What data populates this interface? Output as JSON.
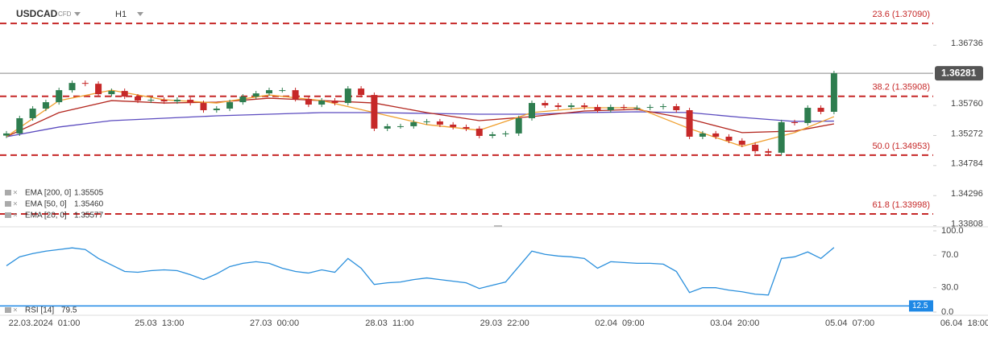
{
  "header": {
    "symbol": "USDCAD",
    "kind": "CFD",
    "timeframe": "H1"
  },
  "chart_data": [
    {
      "type": "candlestick",
      "open": [
        1.3527,
        1.35305,
        1.35552,
        1.35708,
        1.35812,
        1.36007,
        1.36124,
        1.36111,
        1.35942,
        1.35994,
        1.35903,
        1.35838,
        1.35851,
        1.35825,
        1.35851,
        1.35799,
        1.35682,
        1.35708,
        1.35812,
        1.35903,
        1.35955,
        1.36007,
        1.36007,
        1.35864,
        1.35773,
        1.35838,
        1.35799,
        1.36033,
        1.35929,
        1.35383,
        1.35422,
        1.35422,
        1.35487,
        1.355,
        1.35448,
        1.35409,
        1.35383,
        1.35265,
        1.35291,
        1.35305,
        1.35552,
        1.35799,
        1.3576,
        1.35734,
        1.3576,
        1.35734,
        1.35682,
        1.35734,
        1.35721,
        1.35721,
        1.35734,
        1.35747,
        1.35682,
        1.35252,
        1.35305,
        1.35252,
        1.35187,
        1.35122,
        1.35018,
        1.34992,
        1.35487,
        1.35474,
        1.35721,
        1.35656
      ],
      "high": [
        1.35345,
        1.35592,
        1.35748,
        1.35852,
        1.36047,
        1.36164,
        1.36164,
        1.36151,
        1.36034,
        1.36034,
        1.35943,
        1.35891,
        1.35891,
        1.35891,
        1.35891,
        1.35839,
        1.35748,
        1.35852,
        1.35943,
        1.35995,
        1.36047,
        1.36047,
        1.36047,
        1.35904,
        1.35878,
        1.35878,
        1.36073,
        1.36073,
        1.35969,
        1.35462,
        1.35462,
        1.35527,
        1.3554,
        1.3554,
        1.35488,
        1.35449,
        1.35423,
        1.35331,
        1.35345,
        1.35592,
        1.35839,
        1.35839,
        1.358,
        1.358,
        1.358,
        1.35774,
        1.35774,
        1.35774,
        1.35761,
        1.35774,
        1.35787,
        1.35787,
        1.35722,
        1.35345,
        1.35345,
        1.35292,
        1.35227,
        1.35162,
        1.35058,
        1.35527,
        1.35527,
        1.35761,
        1.35761,
        1.36321
      ],
      "low": [
        1.3523,
        1.35265,
        1.35512,
        1.35668,
        1.35772,
        1.35967,
        1.36071,
        1.35902,
        1.35902,
        1.35863,
        1.35798,
        1.35798,
        1.35785,
        1.35785,
        1.35759,
        1.35642,
        1.35642,
        1.35668,
        1.35772,
        1.35863,
        1.35915,
        1.35967,
        1.35824,
        1.35733,
        1.35733,
        1.35759,
        1.35759,
        1.35889,
        1.35343,
        1.35343,
        1.35382,
        1.35382,
        1.35447,
        1.35408,
        1.35369,
        1.35343,
        1.35225,
        1.35225,
        1.35251,
        1.35265,
        1.35512,
        1.3572,
        1.35694,
        1.35694,
        1.35694,
        1.35642,
        1.35642,
        1.35681,
        1.35681,
        1.35681,
        1.35694,
        1.35642,
        1.35212,
        1.35212,
        1.35212,
        1.35147,
        1.35082,
        1.34978,
        1.34952,
        1.34952,
        1.35434,
        1.35434,
        1.35616,
        1.35616
      ],
      "close": [
        1.35305,
        1.35552,
        1.35708,
        1.35812,
        1.36007,
        1.36124,
        1.36111,
        1.35942,
        1.35994,
        1.35903,
        1.35838,
        1.35851,
        1.35825,
        1.35851,
        1.35799,
        1.35682,
        1.35708,
        1.35812,
        1.35903,
        1.35955,
        1.36007,
        1.36007,
        1.35864,
        1.35773,
        1.35838,
        1.35799,
        1.36033,
        1.35929,
        1.35383,
        1.35422,
        1.35422,
        1.35487,
        1.355,
        1.35448,
        1.35409,
        1.35383,
        1.35265,
        1.35291,
        1.35305,
        1.35552,
        1.35799,
        1.3576,
        1.35734,
        1.3576,
        1.35734,
        1.35682,
        1.35734,
        1.35721,
        1.35721,
        1.35734,
        1.35747,
        1.35682,
        1.35252,
        1.35305,
        1.35252,
        1.35187,
        1.35122,
        1.35018,
        1.34992,
        1.35487,
        1.35474,
        1.35721,
        1.35656,
        1.36281
      ],
      "up_color": "#2e7d4f",
      "down_color": "#c62828",
      "ylim": [
        1.3379,
        1.3747
      ],
      "yticks": [
        1.36736,
        {
          "value": 1.3576,
          "label": "1.35760"
        },
        1.35272,
        1.34784,
        1.34296,
        1.33808
      ],
      "last_price": 1.36281,
      "levels": [
        {
          "value": 1.3709,
          "label": "23.6 (1.37090)"
        },
        {
          "value": 1.35908,
          "label": "38.2 (1.35908)"
        },
        {
          "value": 1.34953,
          "label": "50.0 (1.34953)"
        },
        {
          "value": 1.33998,
          "label": "61.8 (1.33998)"
        }
      ],
      "level_color": "#c62828",
      "series": [
        {
          "name": "EMA [200, 0]",
          "color": "#5b4bbf",
          "legend_value": 1.35505,
          "x": [
            0,
            4,
            8,
            12,
            16,
            20,
            24,
            28,
            32,
            36,
            40,
            44,
            48,
            52,
            56,
            60,
            63
          ],
          "values": [
            1.35252,
            1.35409,
            1.35513,
            1.35552,
            1.35591,
            1.35617,
            1.35643,
            1.35643,
            1.3563,
            1.35617,
            1.35617,
            1.35643,
            1.35656,
            1.35643,
            1.35565,
            1.355,
            1.35505
          ]
        },
        {
          "name": "EMA [50, 0]",
          "color": "#b3261e",
          "legend_value": {
            "value": 1.3546,
            "label": "1.35460"
          },
          "x": [
            0,
            4,
            8,
            12,
            16,
            20,
            24,
            28,
            32,
            36,
            40,
            44,
            48,
            52,
            56,
            60,
            63
          ],
          "values": [
            1.35252,
            1.35643,
            1.35838,
            1.35799,
            1.35812,
            1.35877,
            1.35838,
            1.35799,
            1.35643,
            1.35513,
            1.35578,
            1.35669,
            1.35695,
            1.35539,
            1.35318,
            1.35344,
            1.3546
          ]
        },
        {
          "name": "EMA [20, 0]",
          "color": "#f0a030",
          "legend_value": 1.35577,
          "x": [
            0,
            4,
            8,
            12,
            16,
            20,
            24,
            28,
            32,
            36,
            40,
            44,
            48,
            52,
            56,
            60,
            63
          ],
          "values": [
            1.35252,
            1.35838,
            1.36007,
            1.35851,
            1.35799,
            1.35929,
            1.35838,
            1.35643,
            1.35448,
            1.35357,
            1.35643,
            1.35721,
            1.35721,
            1.35383,
            1.35096,
            1.35318,
            1.35577
          ]
        }
      ],
      "x_labels": [
        "22.03.2024  01:00",
        "25.03  13:00",
        "27.03  00:00",
        "28.03  11:00",
        "29.03  22:00",
        "02.04  09:00",
        "03.04  20:00",
        "05.04  07:00",
        "06.04  18:00"
      ]
    },
    {
      "type": "line",
      "series": [
        {
          "name": "RSI [14]",
          "color": "#2a8fdc",
          "legend_value": 79.5,
          "values": [
            57,
            68,
            72,
            75,
            77,
            79,
            77,
            66,
            58,
            50,
            49,
            51,
            52,
            51,
            46,
            40,
            47,
            56,
            60,
            62,
            60,
            54,
            50,
            48,
            52,
            49,
            66,
            54,
            34,
            36,
            37,
            40,
            42,
            40,
            38,
            36,
            29,
            33,
            37,
            56,
            75,
            71,
            69,
            68,
            66,
            54,
            62,
            61,
            60,
            60,
            59,
            50,
            24,
            30,
            30,
            27,
            25,
            22,
            21,
            66,
            68,
            74,
            66,
            79.5
          ]
        }
      ],
      "ylim": [
        0,
        100
      ],
      "yticks": [
        {
          "value": 100,
          "label": "100.0"
        },
        {
          "value": 70,
          "label": "70.0"
        },
        {
          "value": 30,
          "label": "30.0"
        },
        {
          "value": 0,
          "label": "0.0"
        }
      ],
      "marker": 12.5,
      "marker_color": "#1e88e5"
    }
  ]
}
